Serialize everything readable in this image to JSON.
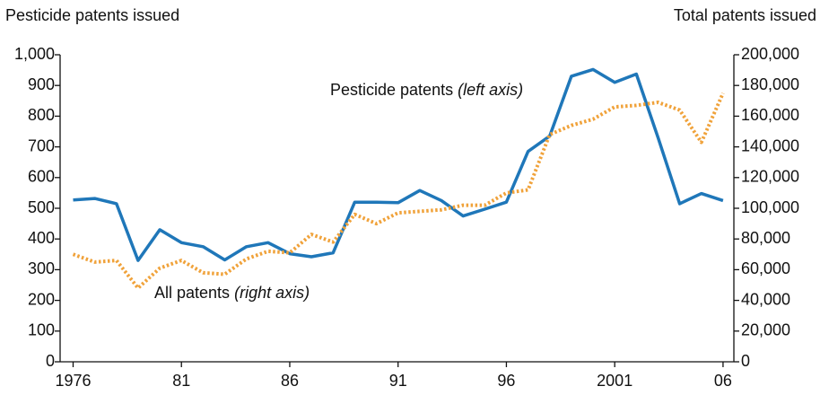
{
  "chart_data": {
    "type": "line",
    "ylabel": "Pesticide patents issued",
    "y2label": "Total patents issued",
    "x": [
      1976,
      1977,
      1978,
      1979,
      1980,
      1981,
      1982,
      1983,
      1984,
      1985,
      1986,
      1987,
      1988,
      1989,
      1990,
      1991,
      1992,
      1993,
      1994,
      1995,
      1996,
      1997,
      1998,
      1999,
      2000,
      2001,
      2002,
      2003,
      2004,
      2005,
      2006
    ],
    "series": [
      {
        "name": "Pesticide patents",
        "axis_note": "(left axis)",
        "color": "#1f77b9",
        "style": "solid",
        "axis": "y",
        "values": [
          527,
          532,
          515,
          330,
          430,
          388,
          375,
          332,
          375,
          388,
          352,
          342,
          355,
          520,
          520,
          518,
          558,
          525,
          475,
          497,
          520,
          685,
          735,
          930,
          952,
          910,
          937,
          730,
          515,
          548,
          525
        ]
      },
      {
        "name": "All patents",
        "axis_note": "(right axis)",
        "color": "#f0a23a",
        "style": "dotted",
        "axis": "y2",
        "values": [
          70000,
          65000,
          66000,
          48000,
          61000,
          66000,
          58000,
          57000,
          67000,
          72000,
          71000,
          83000,
          78000,
          96000,
          90000,
          97000,
          98000,
          99000,
          102000,
          102000,
          110000,
          112000,
          148000,
          154000,
          158000,
          166000,
          167000,
          169000,
          164000,
          143000,
          175000
        ]
      }
    ],
    "xlim": [
      1975.4,
      2006.5
    ],
    "xticks": [
      1976,
      {
        "value": 1981,
        "label": "81"
      },
      {
        "value": 1986,
        "label": "86"
      },
      {
        "value": 1991,
        "label": "91"
      },
      {
        "value": 1996,
        "label": "96"
      },
      2001,
      {
        "value": 2006,
        "label": "06"
      }
    ],
    "ylim": [
      0,
      1000
    ],
    "yticks": [
      0,
      100,
      200,
      300,
      400,
      500,
      600,
      700,
      800,
      900,
      {
        "value": 1000,
        "label": "1,000"
      }
    ],
    "y2lim": [
      0,
      200000
    ],
    "y2ticks": [
      0,
      {
        "value": 20000,
        "label": "20,000"
      },
      {
        "value": 40000,
        "label": "40,000"
      },
      {
        "value": 60000,
        "label": "60,000"
      },
      {
        "value": 80000,
        "label": "80,000"
      },
      {
        "value": 100000,
        "label": "100,000"
      },
      {
        "value": 120000,
        "label": "120,000"
      },
      {
        "value": 140000,
        "label": "140,000"
      },
      {
        "value": 160000,
        "label": "160,000"
      },
      {
        "value": 180000,
        "label": "180,000"
      },
      {
        "value": 200000,
        "label": "200,000"
      }
    ],
    "grid": false
  }
}
